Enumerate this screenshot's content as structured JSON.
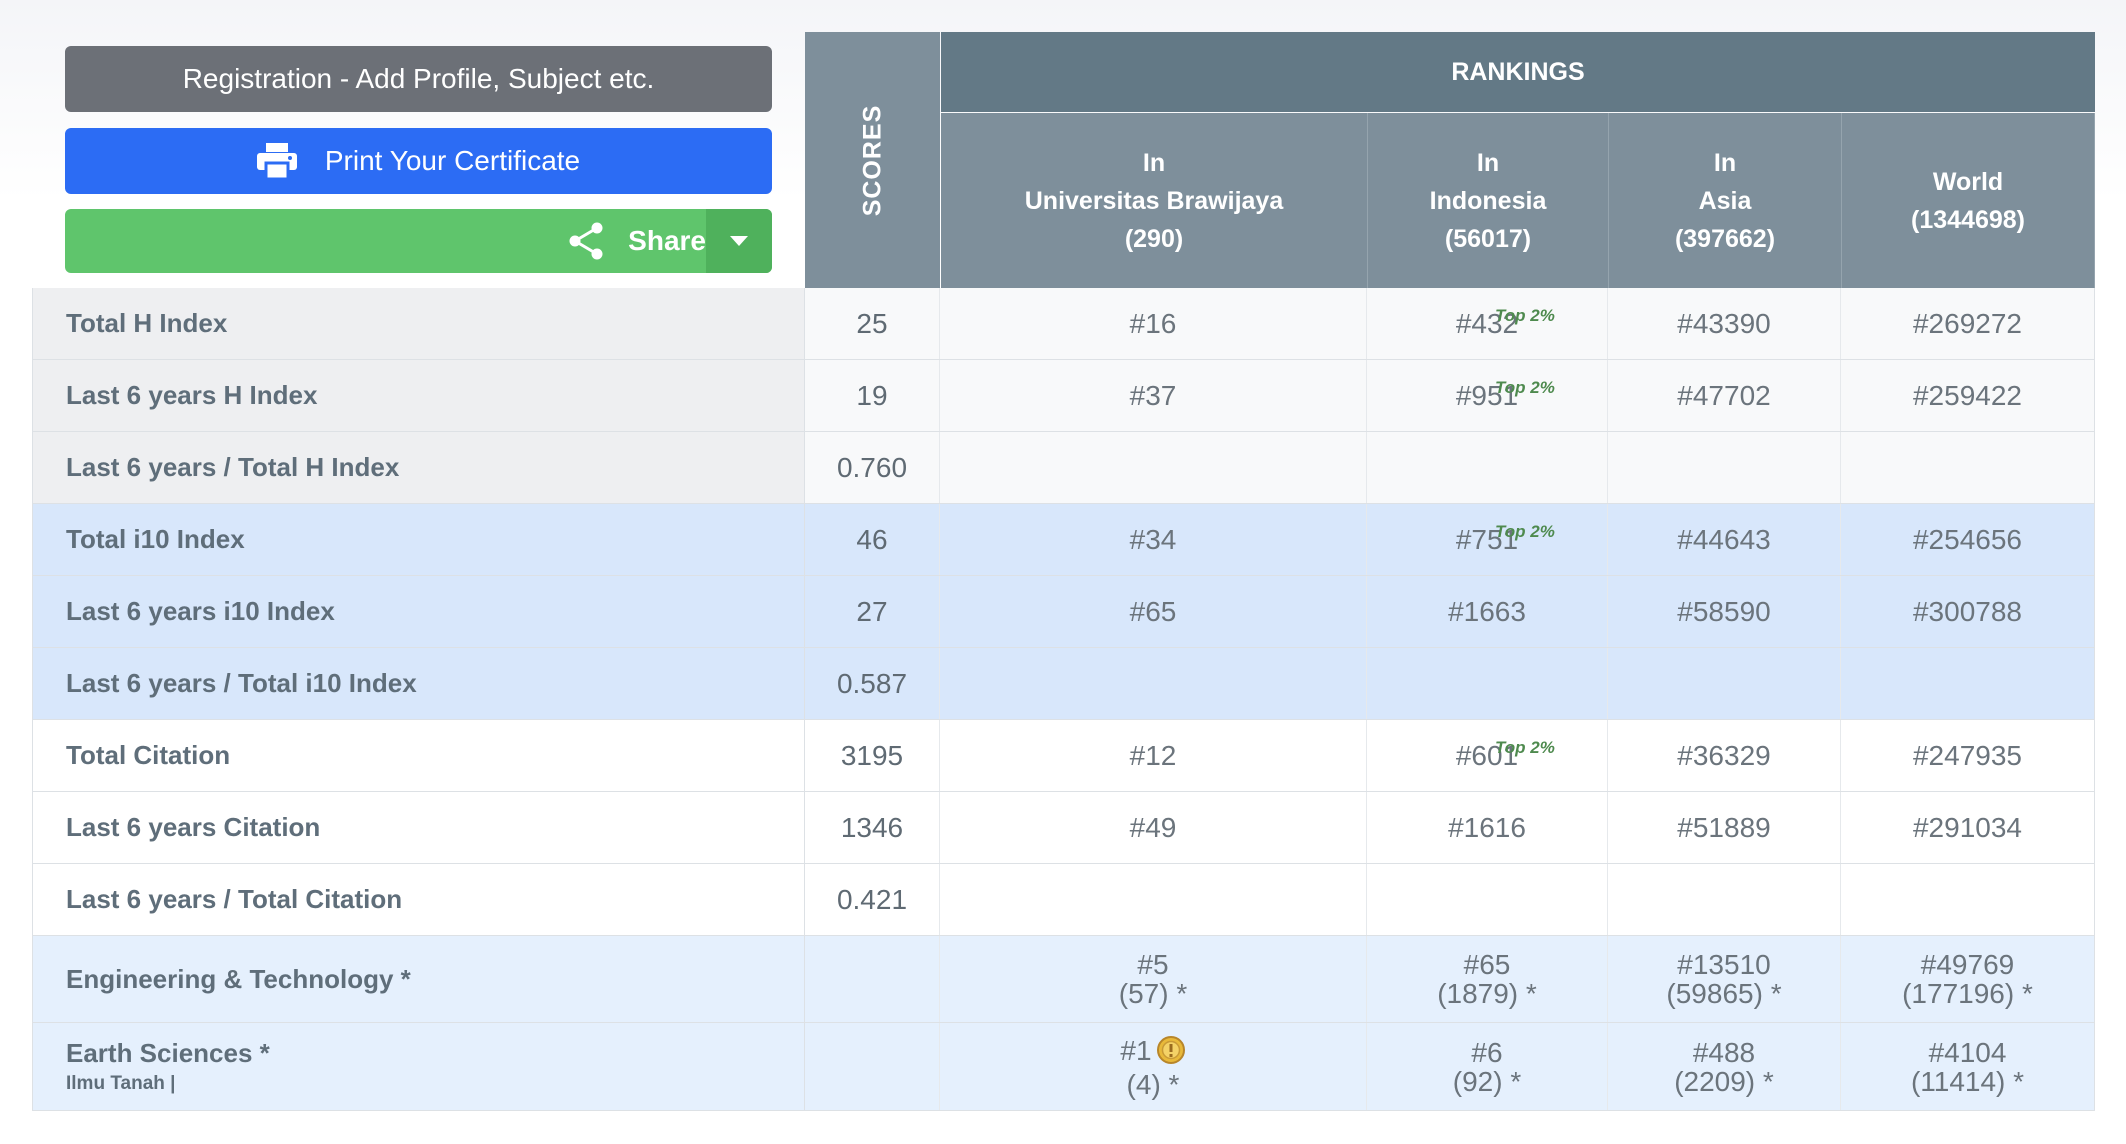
{
  "buttons": {
    "registration": "Registration - Add Profile, Subject etc.",
    "print": "Print Your Certificate",
    "share": "Share"
  },
  "header": {
    "scores": "SCORES",
    "rankings": "RANKINGS",
    "cols": [
      {
        "l1": "In",
        "l2": "Universitas Brawijaya",
        "l3": "(290)"
      },
      {
        "l1": "In",
        "l2": "Indonesia",
        "l3": "(56017)"
      },
      {
        "l1": "In",
        "l2": "Asia",
        "l3": "(397662)"
      },
      {
        "l1": "",
        "l2": "World",
        "l3": "(1344698)"
      }
    ]
  },
  "top_badge": "Top 2%",
  "rows": [
    {
      "label": "Total H Index",
      "score": "25",
      "r1": "#16",
      "r2": "#432",
      "r3": "#43390",
      "r4": "#269272"
    },
    {
      "label": "Last 6 years H Index",
      "score": "19",
      "r1": "#37",
      "r2": "#951",
      "r3": "#47702",
      "r4": "#259422"
    },
    {
      "label": "Last 6 years / Total H Index",
      "score": "0.760",
      "r1": "",
      "r2": "",
      "r3": "",
      "r4": ""
    },
    {
      "label": "Total i10 Index",
      "score": "46",
      "r1": "#34",
      "r2": "#751",
      "r3": "#44643",
      "r4": "#254656"
    },
    {
      "label": "Last 6 years i10 Index",
      "score": "27",
      "r1": "#65",
      "r2": "#1663",
      "r3": "#58590",
      "r4": "#300788"
    },
    {
      "label": "Last 6 years / Total i10 Index",
      "score": "0.587",
      "r1": "",
      "r2": "",
      "r3": "",
      "r4": ""
    },
    {
      "label": "Total Citation",
      "score": "3195",
      "r1": "#12",
      "r2": "#601",
      "r3": "#36329",
      "r4": "#247935"
    },
    {
      "label": "Last 6 years Citation",
      "score": "1346",
      "r1": "#49",
      "r2": "#1616",
      "r3": "#51889",
      "r4": "#291034"
    },
    {
      "label": "Last 6 years / Total Citation",
      "score": "0.421",
      "r1": "",
      "r2": "",
      "r3": "",
      "r4": ""
    }
  ],
  "subjects": [
    {
      "label": "Engineering & Technology *",
      "sub": "",
      "r1a": "#5",
      "r1b": "(57) *",
      "r2a": "#65",
      "r2b": "(1879) *",
      "r3a": "#13510",
      "r3b": "(59865) *",
      "r4a": "#49769",
      "r4b": "(177196) *"
    },
    {
      "label": "Earth Sciences *",
      "sub": "Ilmu Tanah |",
      "r1a": "#1",
      "r1b": "(4) *",
      "r2a": "#6",
      "r2b": "(92) *",
      "r3a": "#488",
      "r3b": "(2209) *",
      "r4a": "#4104",
      "r4b": "(11414) *"
    }
  ],
  "colors": {
    "registration": "#6c7077",
    "print": "#2c6cf4",
    "share": "#5fc56c",
    "header": "#7e8f9b",
    "rankings_header": "#637986"
  }
}
